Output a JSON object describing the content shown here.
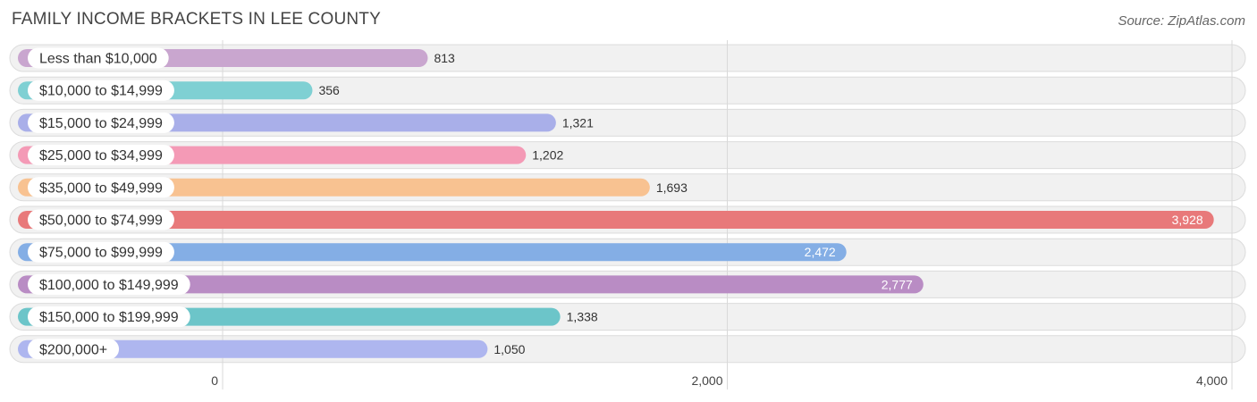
{
  "title": "FAMILY INCOME BRACKETS IN LEE COUNTY",
  "source": "Source: ZipAtlas.com",
  "chart_data": {
    "type": "bar",
    "orientation": "horizontal",
    "title": "FAMILY INCOME BRACKETS IN LEE COUNTY",
    "categories": [
      "Less than $10,000",
      "$10,000 to $14,999",
      "$15,000 to $24,999",
      "$25,000 to $34,999",
      "$35,000 to $49,999",
      "$50,000 to $74,999",
      "$75,000 to $99,999",
      "$100,000 to $149,999",
      "$150,000 to $199,999",
      "$200,000+"
    ],
    "values": [
      813,
      356,
      1321,
      1202,
      1693,
      3928,
      2472,
      2777,
      1338,
      1050
    ],
    "value_labels": [
      "813",
      "356",
      "1,321",
      "1,202",
      "1,693",
      "3,928",
      "2,472",
      "2,777",
      "1,338",
      "1,050"
    ],
    "colors": [
      "#c9a6cf",
      "#7fd0d3",
      "#a9afe9",
      "#f49ab6",
      "#f8c291",
      "#e8797a",
      "#84aee5",
      "#b98cc4",
      "#6cc5c9",
      "#aeb6ef"
    ],
    "xlim": [
      0,
      4000
    ],
    "xticks": [
      0,
      2000,
      4000
    ],
    "xtick_labels": [
      "0",
      "2,000",
      "4,000"
    ],
    "xlabel": "",
    "ylabel": "",
    "grid": true
  }
}
